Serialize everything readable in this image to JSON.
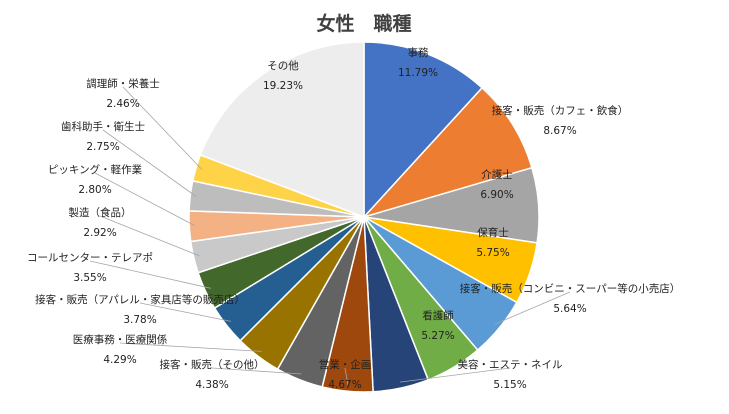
{
  "chart_data": {
    "type": "pie",
    "title": "女性　職種",
    "slices": [
      {
        "name": "事務",
        "label": "11.79%",
        "value": 11.79,
        "color": "#4472C4"
      },
      {
        "name": "接客・販売（カフェ・飲食）",
        "label": "8.67%",
        "value": 8.67,
        "color": "#ED7D31"
      },
      {
        "name": "介護士",
        "label": "6.90%",
        "value": 6.9,
        "color": "#A5A5A5"
      },
      {
        "name": "保育士",
        "label": "5.75%",
        "value": 5.75,
        "color": "#FFC000"
      },
      {
        "name": "接客・販売（コンビニ・スーパー等の小売店）",
        "label": "5.64%",
        "value": 5.64,
        "color": "#5B9BD5"
      },
      {
        "name": "看護師",
        "label": "5.27%",
        "value": 5.27,
        "color": "#70AD47"
      },
      {
        "name": "美容・エステ・ネイル",
        "label": "5.15%",
        "value": 5.15,
        "color": "#264478"
      },
      {
        "name": "営業・企画",
        "label": "4.67%",
        "value": 4.67,
        "color": "#9E480E"
      },
      {
        "name": "接客・販売（その他）",
        "label": "4.38%",
        "value": 4.38,
        "color": "#636363"
      },
      {
        "name": "医療事務・医療関係",
        "label": "4.29%",
        "value": 4.29,
        "color": "#997300"
      },
      {
        "name": "接客・販売（アパレル・家具店等の販売店）",
        "label": "3.78%",
        "value": 3.78,
        "color": "#255E91"
      },
      {
        "name": "コールセンター・テレアポ",
        "label": "3.55%",
        "value": 3.55,
        "color": "#43682B"
      },
      {
        "name": "製造（食品）",
        "label": "2.92%",
        "value": 2.92,
        "color": "#C9C9C9"
      },
      {
        "name": "ピッキング・軽作業",
        "label": "2.80%",
        "value": 2.8,
        "color": "#F4B183"
      },
      {
        "name": "歯科助手・衛生士",
        "label": "2.75%",
        "value": 2.75,
        "color": "#BDBDBD"
      },
      {
        "name": "調理師・栄養士",
        "label": "2.46%",
        "value": 2.46,
        "color": "#FFD347"
      },
      {
        "name": "その他",
        "label": "19.23%",
        "value": 19.23,
        "color": "#EDEDED"
      }
    ],
    "start_angle_deg": 0,
    "direction": "clockwise",
    "legend": "none"
  }
}
